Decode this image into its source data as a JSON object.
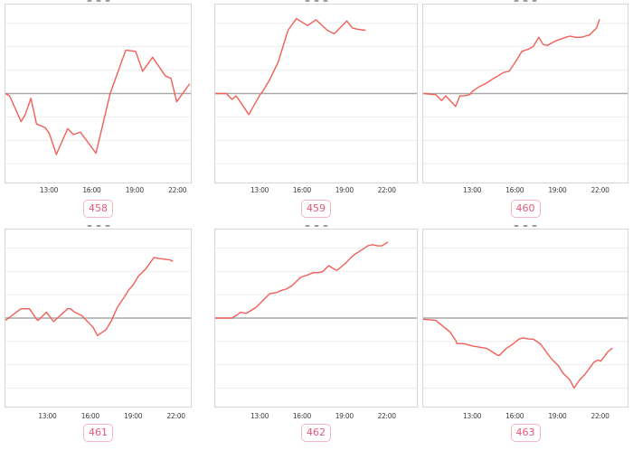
{
  "page": {
    "background": "#ffffff",
    "titles_cropped": true,
    "layout": "2x3 grid of small line charts, each with a numbered badge below"
  },
  "colors": {
    "line": "#f15f58",
    "zero_line": "#a9a9a9",
    "gridline": "#ededed",
    "chart_border": "#d6d6d6",
    "tick_label": "#3c3c3c",
    "badge_text": "#e2587a",
    "badge_border": "#f5b6c4",
    "badge_background": "#ffffff"
  },
  "chart_data": [
    {
      "type": "line",
      "label": "458",
      "x_ticks": [
        "13:00",
        "16:00",
        "19:00",
        "22:00"
      ],
      "x_tick_hours": [
        13,
        16,
        19,
        22
      ],
      "xlim_hours": [
        9.9,
        23.0
      ],
      "ylim": [
        -3.8,
        3.8
      ],
      "baseline": 0,
      "y_tick_labels_visible": false,
      "grid": "horizontal only",
      "x": [
        9.9,
        10.2,
        11.0,
        11.3,
        11.7,
        12.1,
        12.7,
        13.0,
        13.5,
        14.3,
        14.7,
        15.2,
        16.3,
        17.3,
        18.4,
        19.1,
        19.6,
        20.3,
        21.2,
        21.6,
        22.0,
        22.9
      ],
      "y": [
        0,
        -0.1,
        -1.2,
        -0.9,
        -0.2,
        -1.3,
        -1.45,
        -1.7,
        -2.6,
        -1.5,
        -1.75,
        -1.65,
        -2.55,
        0.0,
        1.85,
        1.8,
        0.95,
        1.55,
        0.75,
        0.65,
        -0.35,
        0.4
      ]
    },
    {
      "type": "line",
      "label": "459",
      "x_ticks": [
        "13:00",
        "16:00",
        "19:00",
        "22:00"
      ],
      "x_tick_hours": [
        13,
        16,
        19,
        22
      ],
      "xlim_hours": [
        9.8,
        24.2
      ],
      "ylim": [
        -3.8,
        3.8
      ],
      "baseline": 0,
      "y_tick_labels_visible": false,
      "grid": "horizontal only",
      "x": [
        9.8,
        10.6,
        11.0,
        11.3,
        12.2,
        13.0,
        13.2,
        13.7,
        14.3,
        15.0,
        15.6,
        16.4,
        17.0,
        17.8,
        18.3,
        19.2,
        19.6,
        19.9,
        20.5
      ],
      "y": [
        0,
        0,
        -0.25,
        -0.1,
        -0.9,
        -0.05,
        0.1,
        0.6,
        1.35,
        2.7,
        3.2,
        2.9,
        3.15,
        2.7,
        2.55,
        3.1,
        2.8,
        2.75,
        2.7
      ]
    },
    {
      "type": "line",
      "label": "460",
      "x_ticks": [
        "13:00",
        "16:00",
        "19:00",
        "22:00"
      ],
      "x_tick_hours": [
        13,
        16,
        19,
        22
      ],
      "xlim_hours": [
        9.5,
        24.0
      ],
      "ylim": [
        -3.8,
        3.8
      ],
      "baseline": 0,
      "y_tick_labels_visible": false,
      "grid": "horizontal only",
      "x": [
        9.5,
        10.4,
        10.8,
        11.1,
        11.8,
        12.1,
        12.4,
        12.8,
        13.0,
        13.5,
        14.0,
        14.5,
        14.8,
        15.2,
        15.6,
        16.1,
        16.5,
        17.0,
        17.3,
        17.7,
        18.0,
        18.3,
        18.9,
        19.6,
        19.9,
        20.3,
        20.7,
        21.0,
        21.3,
        21.8,
        22.0
      ],
      "y": [
        0,
        -0.05,
        -0.3,
        -0.1,
        -0.55,
        -0.1,
        -0.1,
        -0.05,
        0.1,
        0.3,
        0.45,
        0.65,
        0.75,
        0.9,
        0.95,
        1.4,
        1.8,
        1.9,
        2.0,
        2.4,
        2.1,
        2.05,
        2.25,
        2.4,
        2.45,
        2.4,
        2.4,
        2.45,
        2.5,
        2.8,
        3.15
      ]
    },
    {
      "type": "line",
      "label": "461",
      "x_ticks": [
        "13:00",
        "16:00",
        "19:00",
        "22:00"
      ],
      "x_tick_hours": [
        13,
        16,
        19,
        22
      ],
      "xlim_hours": [
        10.0,
        23.1
      ],
      "ylim": [
        -3.8,
        3.8
      ],
      "baseline": 0,
      "y_tick_labels_visible": false,
      "grid": "horizontal only",
      "x": [
        10.0,
        11.1,
        11.7,
        12.2,
        12.3,
        12.9,
        13.4,
        14.4,
        14.6,
        14.9,
        15.4,
        16.2,
        16.5,
        17.1,
        17.5,
        17.9,
        18.4,
        18.7,
        19.0,
        19.4,
        19.9,
        20.2,
        20.5,
        20.9,
        21.6,
        21.8
      ],
      "y": [
        -0.1,
        0.4,
        0.4,
        -0.05,
        -0.1,
        0.25,
        -0.15,
        0.4,
        0.4,
        0.25,
        0.1,
        -0.4,
        -0.75,
        -0.5,
        -0.1,
        0.45,
        0.9,
        1.2,
        1.4,
        1.8,
        2.1,
        2.35,
        2.6,
        2.55,
        2.5,
        2.45
      ]
    },
    {
      "type": "line",
      "label": "462",
      "x_ticks": [
        "13:00",
        "16:00",
        "19:00",
        "22:00"
      ],
      "x_tick_hours": [
        13,
        16,
        19,
        22
      ],
      "xlim_hours": [
        9.8,
        24.2
      ],
      "ylim": [
        -3.8,
        3.8
      ],
      "baseline": 0,
      "y_tick_labels_visible": false,
      "grid": "horizontal only",
      "x": [
        9.8,
        11.0,
        11.4,
        11.6,
        12.0,
        12.7,
        13.2,
        13.7,
        14.2,
        14.6,
        14.9,
        15.3,
        15.9,
        16.4,
        16.8,
        17.2,
        17.5,
        17.9,
        18.3,
        18.5,
        19.1,
        19.5,
        19.8,
        20.2,
        20.7,
        21.0,
        21.4,
        21.7,
        22.1
      ],
      "y": [
        0,
        0,
        0.15,
        0.25,
        0.2,
        0.45,
        0.75,
        1.05,
        1.1,
        1.2,
        1.25,
        1.4,
        1.75,
        1.85,
        1.95,
        1.95,
        2.0,
        2.25,
        2.1,
        2.05,
        2.35,
        2.6,
        2.75,
        2.9,
        3.1,
        3.15,
        3.1,
        3.1,
        3.25
      ]
    },
    {
      "type": "line",
      "label": "463",
      "x_ticks": [
        "13:00",
        "16:00",
        "19:00",
        "22:00"
      ],
      "x_tick_hours": [
        13,
        16,
        19,
        22
      ],
      "xlim_hours": [
        9.5,
        24.0
      ],
      "ylim": [
        -3.8,
        3.8
      ],
      "baseline": 0,
      "y_tick_labels_visible": false,
      "grid": "horizontal only",
      "x": [
        9.5,
        10.4,
        11.0,
        11.4,
        11.8,
        11.9,
        12.4,
        13.0,
        13.5,
        14.0,
        14.8,
        14.9,
        15.4,
        15.9,
        16.3,
        16.6,
        17.0,
        17.3,
        17.8,
        18.6,
        19.1,
        19.4,
        19.9,
        20.2,
        20.6,
        21.0,
        21.3,
        21.6,
        21.9,
        22.1,
        22.6,
        22.9
      ],
      "y": [
        -0.05,
        -0.1,
        -0.4,
        -0.6,
        -0.95,
        -1.1,
        -1.1,
        -1.2,
        -1.25,
        -1.3,
        -1.6,
        -1.6,
        -1.3,
        -1.1,
        -0.9,
        -0.85,
        -0.9,
        -0.9,
        -1.1,
        -1.75,
        -2.05,
        -2.35,
        -2.65,
        -3.0,
        -2.65,
        -2.4,
        -2.15,
        -1.9,
        -1.8,
        -1.85,
        -1.45,
        -1.3
      ]
    }
  ]
}
